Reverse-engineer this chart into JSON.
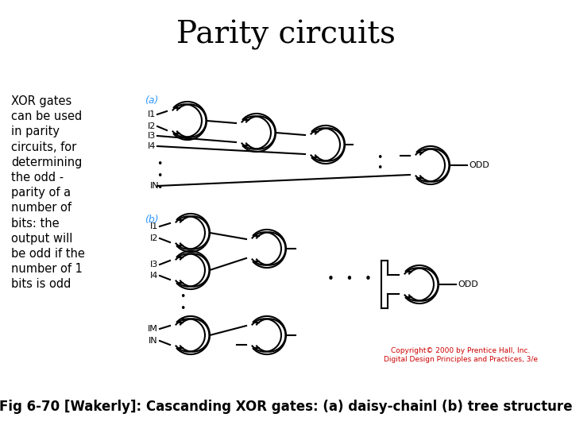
{
  "title": "Parity circuits",
  "title_fontsize": 28,
  "left_text": "XOR gates\ncan be used\nin parity\ncircuits, for\ndetermining\nthe odd -\nparity of a\nnumber of\nbits: the\noutput will\nbe odd if the\nnumber of 1\nbits is odd",
  "label_a": "(a)",
  "label_b": "(b)",
  "label_color": "#3399FF",
  "caption": "Fig 6-70 [Wakerly]: Cascanding XOR gates: (a) daisy-chainl (b) tree structure",
  "caption_fontsize": 12,
  "copyright_text": "Copyright© 2000 by Prentice Hall, Inc.\nDigital Design Principles and Practices, 3/e",
  "copyright_color": "#CC0000",
  "copyright_fontsize": 6.5,
  "bg_color": "#FFFFFF",
  "diagram_color": "#000000",
  "lw": 1.5
}
